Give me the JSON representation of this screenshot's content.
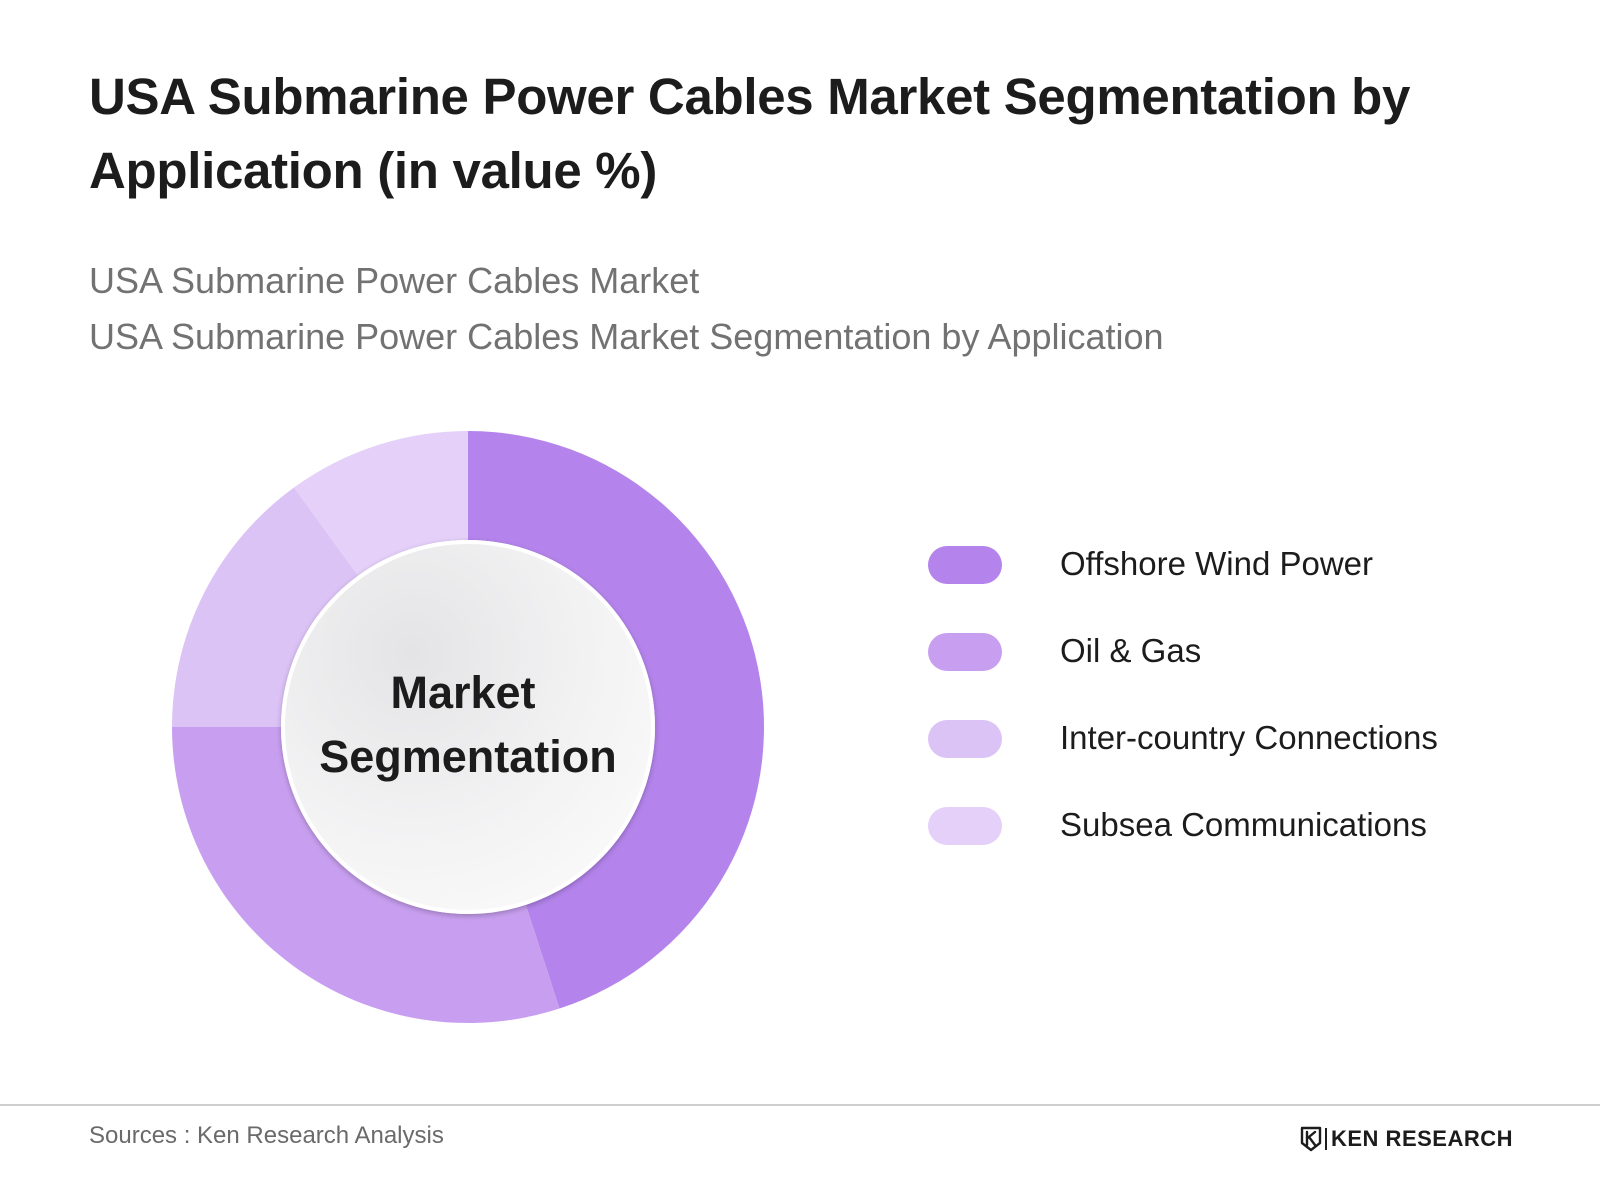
{
  "title": "USA Submarine Power Cables Market Segmentation by Application (in value %)",
  "subtitle_1": "USA Submarine Power Cables Market",
  "subtitle_2": "USA Submarine Power Cables Market Segmentation by Application",
  "center_label": {
    "line_1": "Market",
    "line_2": "Segmentation"
  },
  "colors": {
    "offshore_wind": "#b484ec",
    "oil_gas": "#c89ff0",
    "inter_country": "#dcc3f6",
    "subsea_comm": "#e4d0f8"
  },
  "chart_data": {
    "type": "pie",
    "variant": "donut",
    "title": "USA Submarine Power Cables Market Segmentation by Application (in value %)",
    "categories": [
      "Offshore Wind Power",
      "Oil & Gas",
      "Inter-country Connections",
      "Subsea Communications"
    ],
    "values": [
      45,
      30,
      15,
      10
    ],
    "unit": "%",
    "colors": [
      "#b484ec",
      "#c89ff0",
      "#dcc3f6",
      "#e4d0f8"
    ],
    "legend_position": "right",
    "start_angle": "top",
    "direction": "clockwise"
  },
  "legend": [
    {
      "label": "Offshore Wind Power",
      "color": "#b484ec"
    },
    {
      "label": "Oil & Gas",
      "color": "#c89ff0"
    },
    {
      "label": "Inter-country Connections",
      "color": "#dcc3f6"
    },
    {
      "label": "Subsea Communications",
      "color": "#e4d0f8"
    }
  ],
  "source": "Sources : Ken Research Analysis",
  "brand": {
    "name": "KEN RESEARCH",
    "logo_icon": "ken-research-logo-icon"
  }
}
